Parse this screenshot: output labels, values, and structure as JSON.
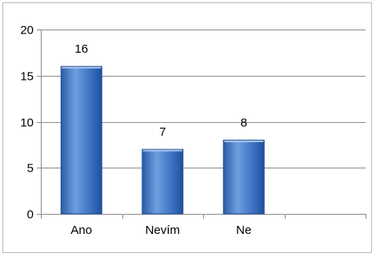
{
  "chart_data": {
    "type": "bar",
    "categories": [
      "Ano",
      "Nevím",
      "Ne",
      ""
    ],
    "values": [
      16,
      7,
      8,
      null
    ],
    "data_labels": [
      "16",
      "7",
      "8",
      ""
    ],
    "title": "",
    "xlabel": "",
    "ylabel": "",
    "ylim": [
      0,
      20
    ],
    "yticks": [
      0,
      5,
      10,
      15,
      20
    ],
    "grid": "horizontal",
    "legend": "none",
    "colors": {
      "bar_light": "#6f9ee0",
      "bar_mid": "#3f74c4",
      "bar_dark": "#1f4f9e",
      "bar_edge": "#27508f",
      "grid": "#8c8c8c",
      "axis": "#8c8c8c",
      "frame": "#b9b9b9"
    }
  }
}
